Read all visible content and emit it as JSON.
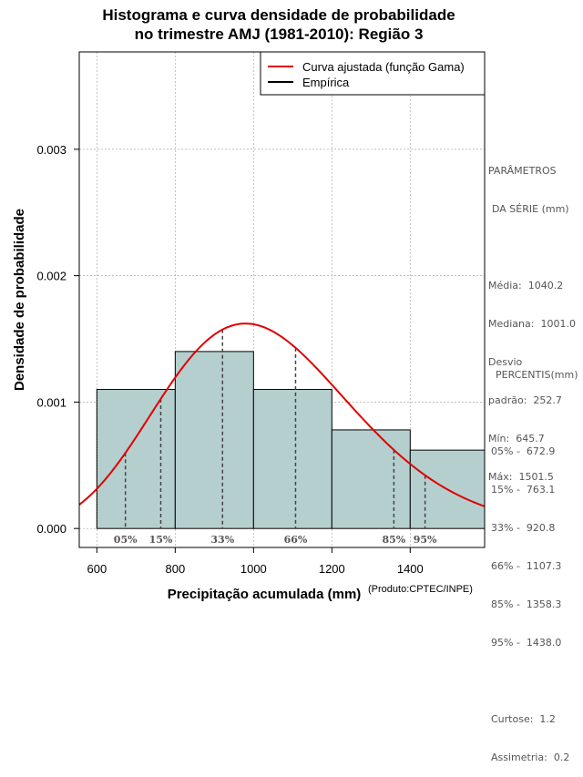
{
  "title": {
    "line1": "Histograma e curva densidade de probabilidade",
    "line2": "no trimestre AMJ (1981-2010): Região 3"
  },
  "colors": {
    "bar_fill": "#b5cfcf",
    "curve": "#e00000",
    "grid": "#aaaaaa",
    "stats_text": "#555555"
  },
  "chart_data": {
    "type": "bar",
    "subtype": "histogram-with-density-curve",
    "xlabel": "Precipitação acumulada (mm)",
    "ylabel": "Densidade de probabilidade",
    "xlim": [
      555,
      1590
    ],
    "ylim": [
      -0.00015,
      0.00377
    ],
    "x_ticks": [
      600,
      800,
      1000,
      1200,
      1400
    ],
    "x_tick_labels": [
      "600",
      "800",
      "1000",
      "1200",
      "1400"
    ],
    "y_ticks": [
      0.0,
      0.001,
      0.002,
      0.003
    ],
    "y_tick_labels": [
      "0.000",
      "0.001",
      "0.002",
      "0.003"
    ],
    "grid": true,
    "bins": [
      {
        "start": 600,
        "end": 800,
        "density": 0.0011
      },
      {
        "start": 800,
        "end": 1000,
        "density": 0.0014
      },
      {
        "start": 1000,
        "end": 1200,
        "density": 0.0011
      },
      {
        "start": 1200,
        "end": 1400,
        "density": 0.00078
      },
      {
        "start": 1400,
        "end": 1600,
        "density": 0.00062
      }
    ],
    "gamma_fit": {
      "shape": 17.0,
      "scale": 61.2
    },
    "percentile_lines": [
      {
        "label": "05%",
        "value": 672.9
      },
      {
        "label": "15%",
        "value": 763.1
      },
      {
        "label": "33%",
        "value": 920.8
      },
      {
        "label": "66%",
        "value": 1107.3
      },
      {
        "label": "85%",
        "value": 1358.3
      },
      {
        "label": "95%",
        "value": 1438.0
      }
    ],
    "legend": {
      "position": "top-right",
      "items": [
        {
          "label": "Curva ajustada (função Gama)",
          "color": "#e00000"
        },
        {
          "label": "Empírica",
          "color": "#000000"
        }
      ]
    }
  },
  "stats": {
    "params_title_1": "PARÂMETROS",
    "params_title_2": "DA SÉRIE (mm)",
    "media": "Média:  1040.2",
    "mediana": "Mediana:  1001.0",
    "desvio_1": "Desvio",
    "desvio_2": "padrão:  252.7",
    "min": "Mín:  645.7",
    "max": "Máx:  1501.5",
    "percentis_title": "PERCENTIS(mm)",
    "p05": "05% -  672.9",
    "p15": "15% -  763.1",
    "p33": "33% -  920.8",
    "p66": "66% -  1107.3",
    "p85": "85% -  1358.3",
    "p95": "95% -  1438.0",
    "curtose": "Curtose:  1.2",
    "assimetria": "Assimetria:  0.2"
  },
  "credit": "(Produto:CPTEC/INPE)"
}
